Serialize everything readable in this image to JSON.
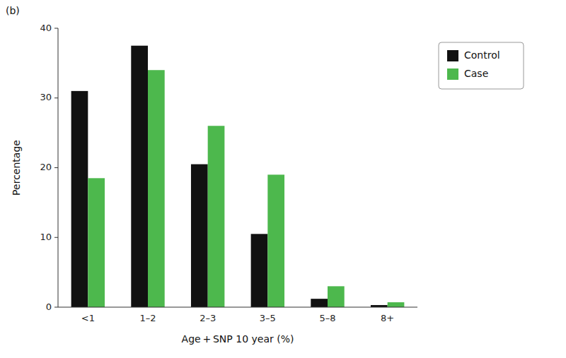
{
  "chart_data": {
    "type": "bar",
    "xlabel": "Age + SNP 10 year (%)",
    "ylabel": "Percentage",
    "annotations": [
      "(b)"
    ],
    "categories": [
      "<1",
      "1–2",
      "2–3",
      "3–5",
      "5–8",
      "8+"
    ],
    "series": [
      {
        "name": "Control",
        "color": "#111111",
        "values": [
          31,
          37.5,
          20.5,
          10.5,
          1.2,
          0.3
        ]
      },
      {
        "name": "Case",
        "color": "#4db84d",
        "values": [
          18.5,
          34,
          26,
          19,
          3,
          0.7
        ]
      }
    ],
    "ylim": [
      0,
      40
    ],
    "yticks": [
      0,
      10,
      20,
      30,
      40
    ],
    "grid": false,
    "legend": "right"
  }
}
